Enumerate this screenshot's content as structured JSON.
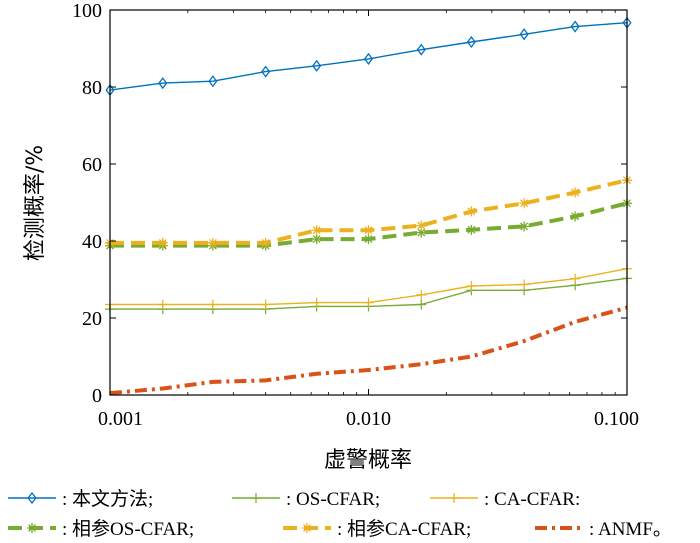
{
  "chart_data": {
    "type": "line",
    "xlabel": "虚警概率",
    "ylabel": "检测概率/%",
    "x_scale": "log",
    "xlim": [
      0.001,
      0.1
    ],
    "ylim": [
      0,
      100
    ],
    "x_ticks": [
      0.001,
      0.01,
      0.1
    ],
    "x_tick_labels": [
      "0.001",
      "0.010",
      "0.100"
    ],
    "y_ticks": [
      0,
      20,
      40,
      60,
      80,
      100
    ],
    "y_tick_labels": [
      "0",
      "20",
      "40",
      "60",
      "80",
      "100"
    ],
    "grid": false,
    "legend_position": "bottom",
    "x": [
      0.001,
      0.0016,
      0.0025,
      0.004,
      0.0063,
      0.01,
      0.016,
      0.025,
      0.04,
      0.063,
      0.1
    ],
    "series": [
      {
        "name": ": 本文方法;",
        "color": "#0072BD",
        "line": "solid",
        "marker": "diamond",
        "values": [
          79.2,
          81.0,
          81.5,
          84.0,
          85.5,
          87.3,
          89.7,
          91.7,
          93.7,
          95.7,
          96.7
        ]
      },
      {
        "name": ": OS-CFAR;",
        "color": "#77AC30",
        "line": "solid",
        "marker": "plus",
        "values": [
          22.3,
          22.3,
          22.3,
          22.3,
          23.0,
          23.0,
          23.5,
          27.2,
          27.2,
          28.5,
          30.3
        ]
      },
      {
        "name": ": CA-CFAR:",
        "color": "#EDB120",
        "line": "solid",
        "marker": "plus",
        "values": [
          23.5,
          23.5,
          23.5,
          23.5,
          24.0,
          24.0,
          26.0,
          28.3,
          28.7,
          30.2,
          32.8
        ]
      },
      {
        "name": ": 相参OS-CFAR;",
        "color": "#77AC30",
        "line": "dashed",
        "marker": "star",
        "values": [
          38.8,
          38.8,
          38.8,
          38.8,
          40.5,
          40.5,
          42.2,
          42.9,
          43.8,
          46.4,
          49.8
        ]
      },
      {
        "name": ": 相参CA-CFAR;",
        "color": "#EDB120",
        "line": "dashed",
        "marker": "star",
        "values": [
          39.5,
          39.5,
          39.5,
          39.5,
          42.8,
          42.8,
          44.0,
          47.7,
          49.8,
          52.6,
          55.8
        ]
      },
      {
        "name": ": ANMF。",
        "color": "#D95319",
        "line": "dashdot",
        "marker": "none",
        "values": [
          0.5,
          1.7,
          3.4,
          3.8,
          5.5,
          6.5,
          8.0,
          10.0,
          14.0,
          19.0,
          22.7
        ]
      }
    ]
  }
}
